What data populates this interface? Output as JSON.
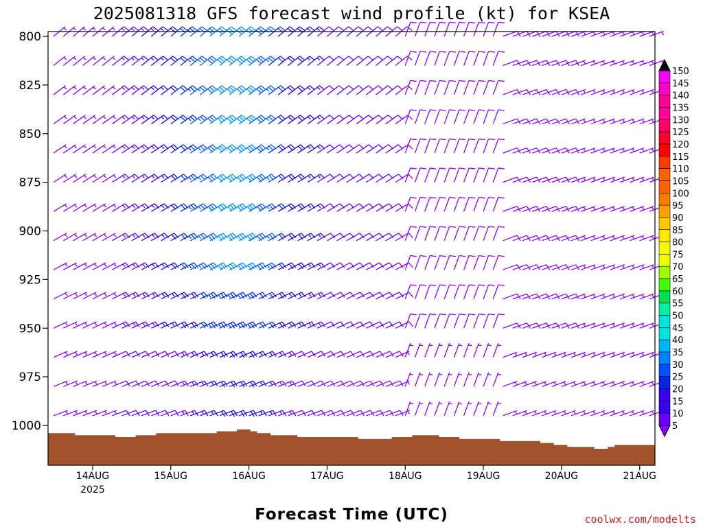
{
  "title": "2025081318 GFS forecast wind profile (kt) for KSEA",
  "xlabel": "Forecast Time (UTC)",
  "credit": "coolwx.com/modelts",
  "colors": {
    "terrain": "#a0522d",
    "barb_scale": [
      "#8a00ff",
      "#6a00ff",
      "#3a00f0",
      "#0028e6",
      "#0050ff",
      "#0084ff",
      "#00b4ff",
      "#00e6dc",
      "#00f0a0",
      "#00e050",
      "#40ff00",
      "#a0ff00",
      "#f0ff00",
      "#ffe600",
      "#ffc800",
      "#ffa000",
      "#ff8000",
      "#ff6400",
      "#ff3c00",
      "#ff0000",
      "#ff0028",
      "#ff0064",
      "#ff0096",
      "#ff00c8",
      "#ff00ff",
      "#c800c8",
      "#000000"
    ]
  },
  "chart_data": {
    "type": "wind-barb-profile",
    "title": "2025081318 GFS forecast wind profile (kt) for KSEA",
    "xlabel": "Forecast Time (UTC)",
    "ylabel": "",
    "y_axis": "pressure (hPa), inverted",
    "ylim": [
      1020,
      795
    ],
    "y_ticks": [
      "800",
      "825",
      "850",
      "875",
      "900",
      "925",
      "950",
      "975",
      "1000"
    ],
    "x_ticks": [
      "14AUG",
      "15AUG",
      "16AUG",
      "17AUG",
      "18AUG",
      "19AUG",
      "20AUG",
      "21AUG"
    ],
    "x_year": "2025",
    "x_hours": {
      "start": -6,
      "end": 177,
      "step": 3
    },
    "levels": [
      800,
      815,
      830,
      845,
      860,
      875,
      890,
      905,
      920,
      935,
      950,
      965,
      980,
      995
    ],
    "colorbar": {
      "ticks": [
        "150",
        "145",
        "140",
        "135",
        "130",
        "125",
        "120",
        "115",
        "110",
        "105",
        "100",
        "95",
        "90",
        "85",
        "80",
        "75",
        "70",
        "65",
        "60",
        "55",
        "50",
        "45",
        "40",
        "35",
        "30",
        "25",
        "20",
        "15",
        "10",
        "5"
      ]
    },
    "terrain_pressure_hpa": [
      1004,
      1004,
      1004,
      1004,
      1005,
      1005,
      1005,
      1005,
      1005,
      1005,
      1006,
      1006,
      1006,
      1005,
      1005,
      1005,
      1004,
      1004,
      1004,
      1004,
      1004,
      1004,
      1004,
      1004,
      1004,
      1003,
      1003,
      1003,
      1002,
      1002,
      1003,
      1004,
      1004,
      1005,
      1005,
      1005,
      1005,
      1006,
      1006,
      1006,
      1006,
      1006,
      1006,
      1006,
      1006,
      1006,
      1007,
      1007,
      1007,
      1007,
      1007,
      1006,
      1006,
      1006,
      1005,
      1005,
      1005,
      1005,
      1006,
      1006,
      1006,
      1007,
      1007,
      1007,
      1007,
      1007,
      1007,
      1008,
      1008,
      1008,
      1008,
      1008,
      1008,
      1009,
      1009,
      1010,
      1010,
      1011,
      1011,
      1011,
      1011,
      1012,
      1012,
      1011,
      1010,
      1010,
      1010,
      1010,
      1010,
      1010
    ]
  }
}
